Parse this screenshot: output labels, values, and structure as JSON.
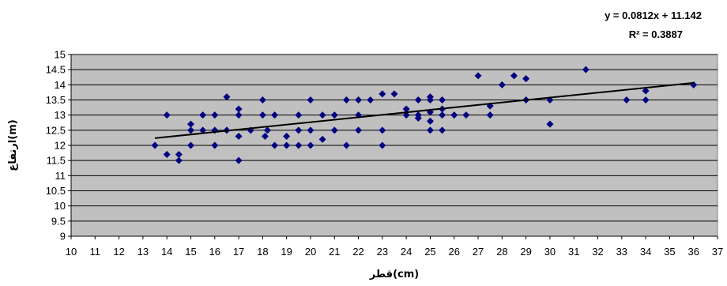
{
  "chart_data": {
    "type": "scatter",
    "title": "",
    "xlabel": "قطر(cm)",
    "ylabel": "ارتفاع(m)",
    "xlim": [
      10,
      37
    ],
    "ylim": [
      9,
      15
    ],
    "x_ticks": [
      10,
      11,
      12,
      13,
      14,
      15,
      16,
      17,
      18,
      19,
      20,
      21,
      22,
      23,
      24,
      25,
      26,
      27,
      28,
      29,
      30,
      31,
      32,
      33,
      34,
      35,
      36,
      37
    ],
    "y_ticks": [
      9,
      9.5,
      10,
      10.5,
      11,
      11.5,
      12,
      12.5,
      13,
      13.5,
      14,
      14.5,
      15
    ],
    "grid": "horizontal",
    "plot_background": "#c0c0c0",
    "marker_color": "#000080",
    "trendline_color": "#000000",
    "trendline": {
      "slope": 0.0812,
      "intercept": 11.142,
      "x_range": [
        13.5,
        36
      ],
      "equation_label": "y = 0.0812x + 11.142",
      "r2_label": "R² = 0.3887"
    },
    "series": [
      {
        "points": [
          [
            13.5,
            12.0
          ],
          [
            14,
            13.0
          ],
          [
            14,
            11.7
          ],
          [
            14.5,
            11.7
          ],
          [
            14.5,
            11.5
          ],
          [
            15,
            12.7
          ],
          [
            15,
            12.5
          ],
          [
            15,
            12.0
          ],
          [
            15.5,
            13.0
          ],
          [
            15.5,
            12.5
          ],
          [
            16,
            13.0
          ],
          [
            16,
            12.5
          ],
          [
            16,
            12.0
          ],
          [
            16.5,
            13.6
          ],
          [
            16.5,
            12.5
          ],
          [
            17,
            13.2
          ],
          [
            17,
            13.0
          ],
          [
            17,
            12.3
          ],
          [
            17,
            11.5
          ],
          [
            17.5,
            12.5
          ],
          [
            18,
            13.5
          ],
          [
            18,
            13.0
          ],
          [
            18.1,
            12.3
          ],
          [
            18.2,
            12.5
          ],
          [
            18.5,
            13.0
          ],
          [
            18.5,
            12.0
          ],
          [
            19,
            12.3
          ],
          [
            19,
            12.0
          ],
          [
            19.5,
            13.0
          ],
          [
            19.5,
            12.5
          ],
          [
            19.5,
            12.0
          ],
          [
            20,
            13.5
          ],
          [
            20,
            12.5
          ],
          [
            20,
            12.0
          ],
          [
            20.5,
            13.0
          ],
          [
            20.5,
            12.2
          ],
          [
            21,
            13.0
          ],
          [
            21,
            12.5
          ],
          [
            21.5,
            13.5
          ],
          [
            21.5,
            12.0
          ],
          [
            22,
            13.5
          ],
          [
            22,
            13.0
          ],
          [
            22,
            12.5
          ],
          [
            22.5,
            13.5
          ],
          [
            23,
            13.7
          ],
          [
            23,
            12.5
          ],
          [
            23,
            12.0
          ],
          [
            23.5,
            13.7
          ],
          [
            24,
            13.2
          ],
          [
            24,
            13.0
          ],
          [
            24.5,
            13.5
          ],
          [
            24.5,
            13.0
          ],
          [
            24.5,
            12.9
          ],
          [
            25,
            13.6
          ],
          [
            25,
            13.5
          ],
          [
            25,
            13.1
          ],
          [
            25,
            12.8
          ],
          [
            25,
            12.5
          ],
          [
            25.5,
            13.5
          ],
          [
            25.5,
            13.2
          ],
          [
            25.5,
            13.0
          ],
          [
            25.5,
            12.5
          ],
          [
            26,
            13.0
          ],
          [
            26.5,
            13.0
          ],
          [
            27,
            14.3
          ],
          [
            27.5,
            13.3
          ],
          [
            27.5,
            13.0
          ],
          [
            28,
            14.0
          ],
          [
            28.5,
            14.3
          ],
          [
            29,
            14.2
          ],
          [
            29,
            13.5
          ],
          [
            30,
            13.5
          ],
          [
            30,
            12.7
          ],
          [
            31.5,
            14.5
          ],
          [
            33.2,
            13.5
          ],
          [
            34,
            13.8
          ],
          [
            34,
            13.5
          ],
          [
            36,
            14.0
          ]
        ]
      }
    ]
  }
}
